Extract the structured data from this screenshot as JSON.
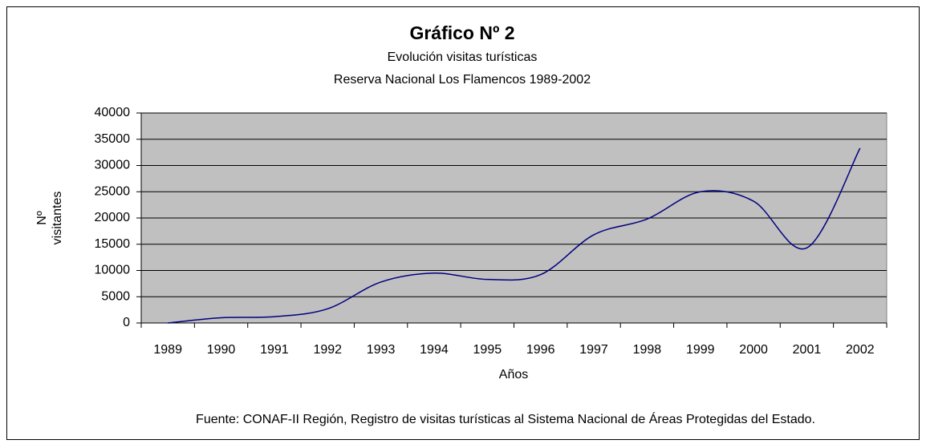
{
  "chart_data": {
    "type": "line",
    "title": "Gráfico Nº 2",
    "subtitle": [
      "Evolución visitas turísticas",
      "Reserva Nacional Los Flamencos 1989-2002"
    ],
    "xlabel": "Años",
    "ylabel": [
      "Nº",
      "visitantes"
    ],
    "note": "Fuente: CONAF-II Región, Registro de visitas turísticas al Sistema Nacional de Áreas Protegidas del Estado.",
    "categories": [
      "1989",
      "1990",
      "1991",
      "1992",
      "1993",
      "1994",
      "1995",
      "1996",
      "1997",
      "1998",
      "1999",
      "2000",
      "2001",
      "2002"
    ],
    "series": [
      {
        "name": "Nº visitantes",
        "color": "#000080",
        "values": [
          0,
          1000,
          1200,
          2700,
          7800,
          9500,
          8300,
          9200,
          16800,
          19800,
          25000,
          23200,
          14300,
          33300
        ]
      }
    ],
    "ylim": [
      0,
      40000
    ],
    "yticks": [
      0,
      5000,
      10000,
      15000,
      20000,
      25000,
      30000,
      35000,
      40000
    ],
    "grid": true,
    "plot_background": "#c0c0c0"
  }
}
